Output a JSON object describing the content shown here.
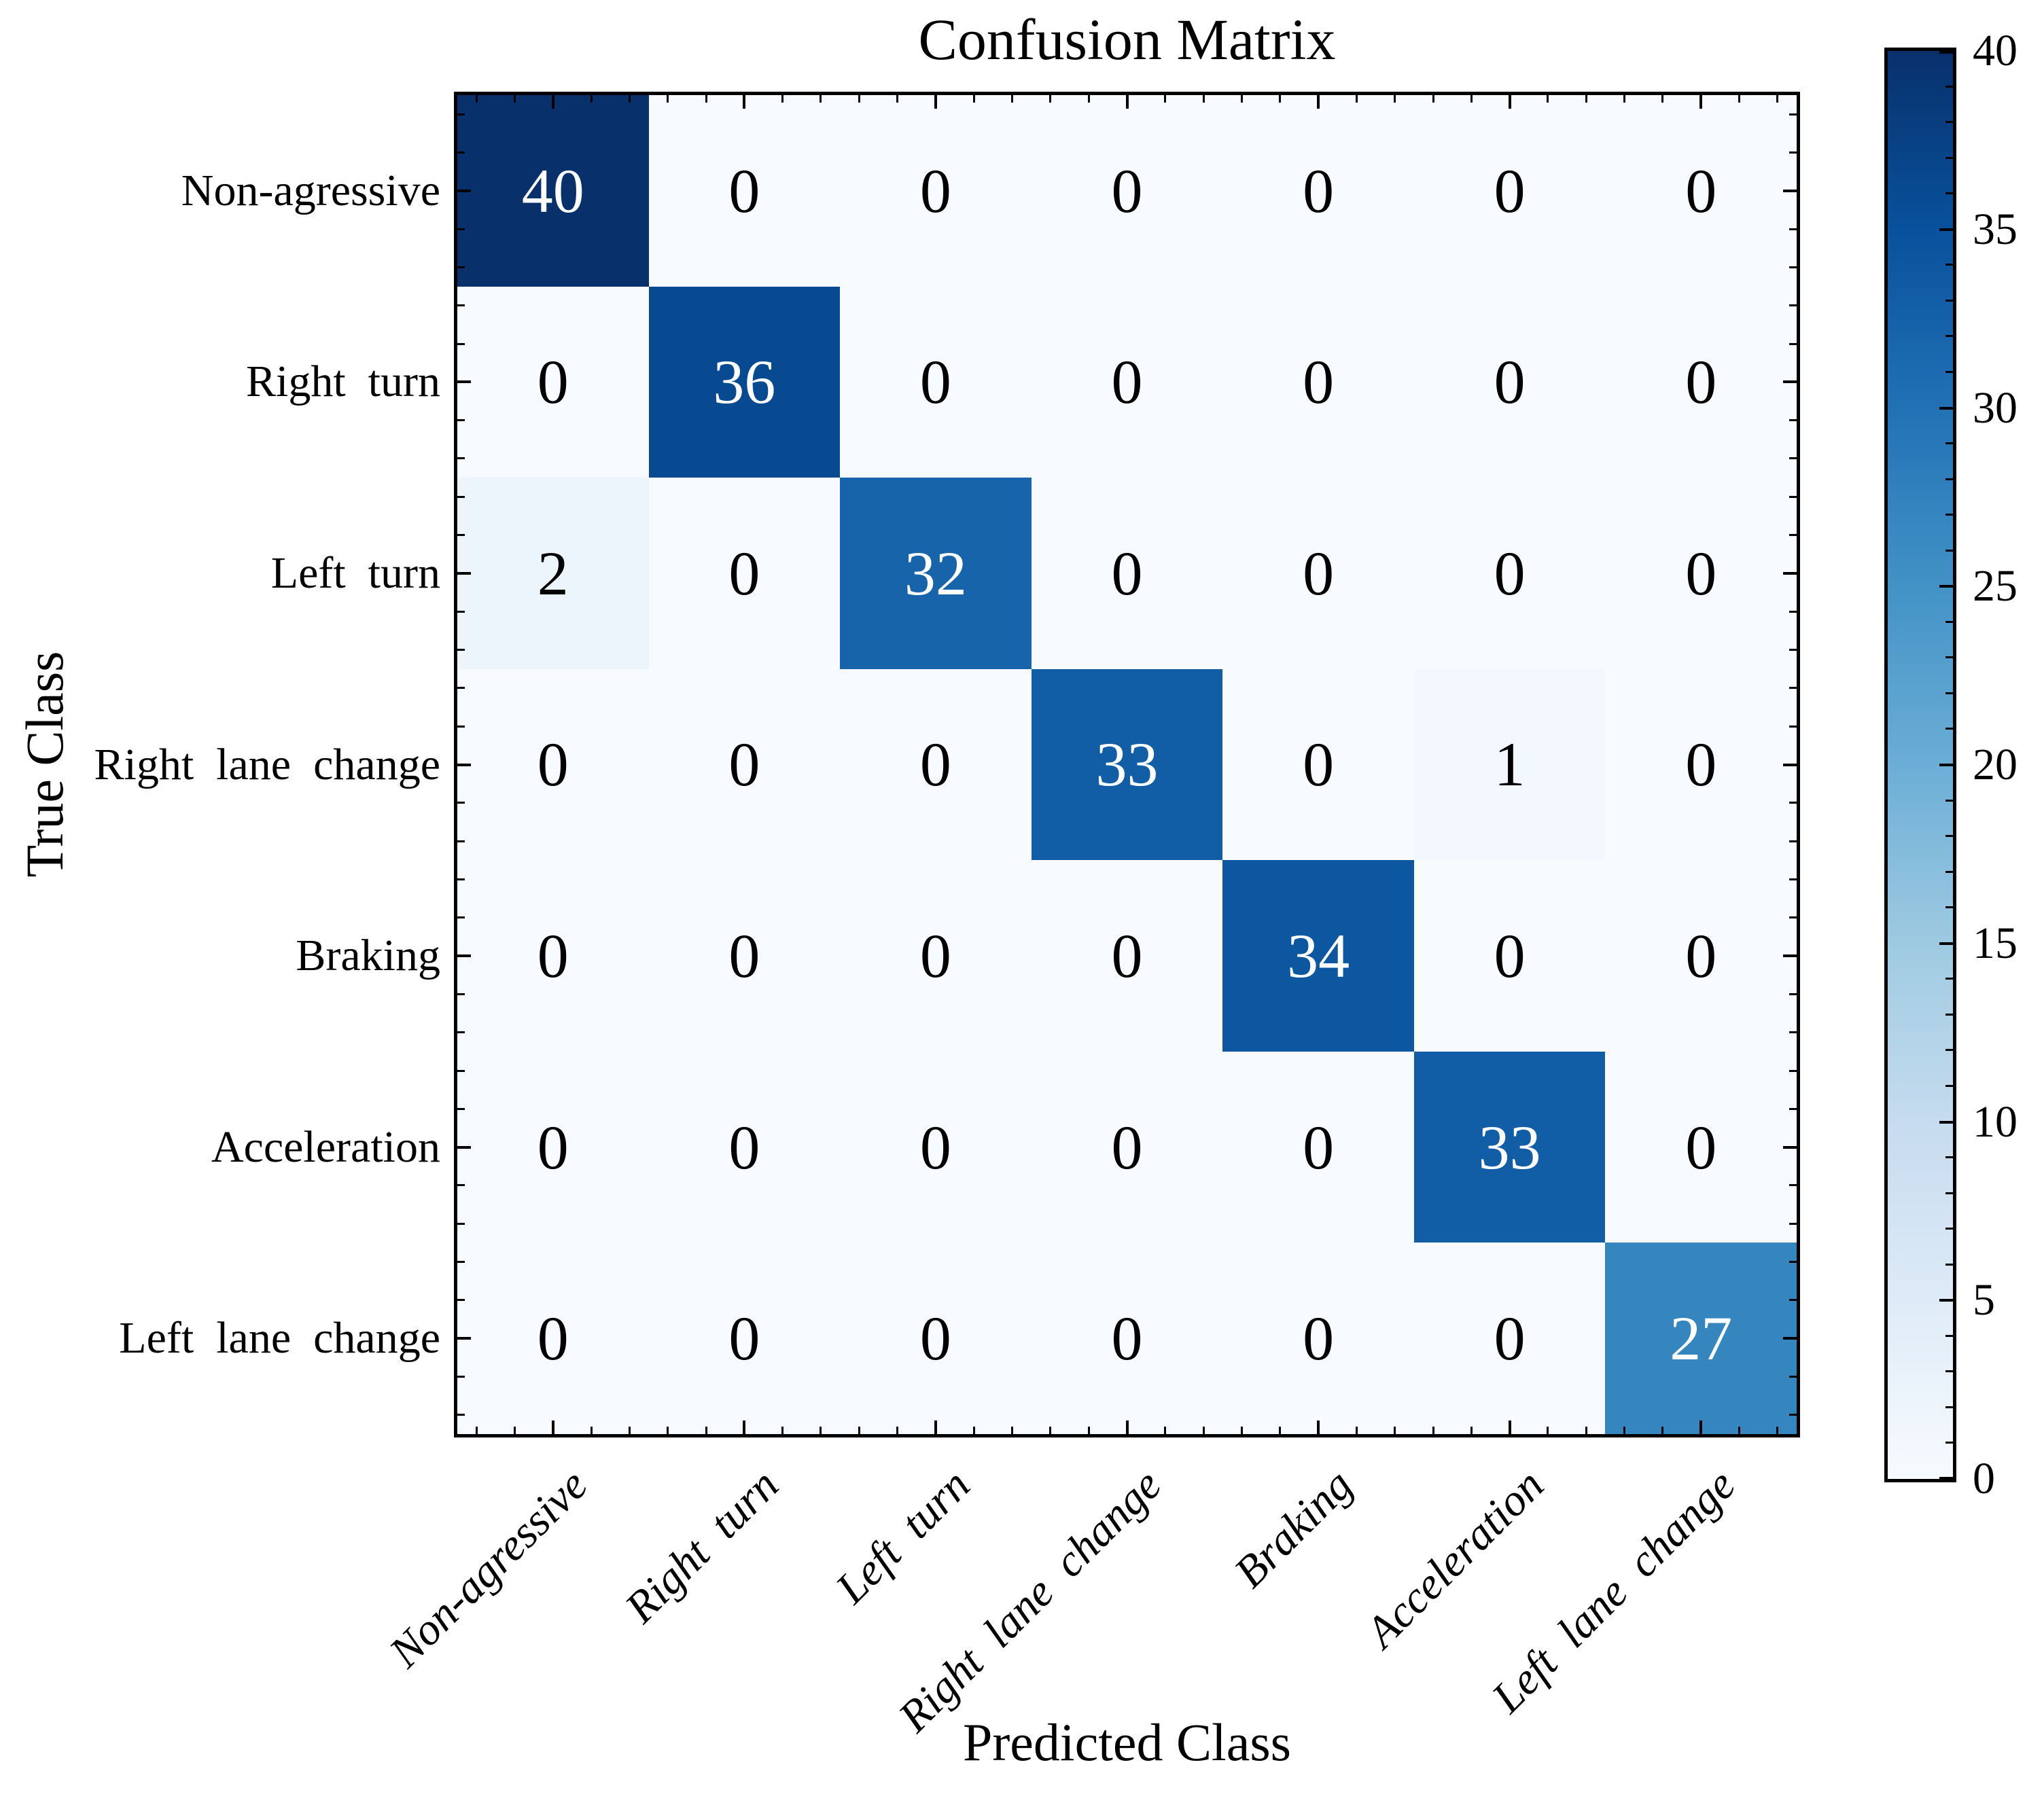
{
  "chart_data": {
    "type": "heatmap",
    "title": "Confusion Matrix",
    "xlabel": "Predicted Class",
    "ylabel": "True Class",
    "categories": [
      "Non-agressive",
      "Right turn",
      "Left turn",
      "Right lane change",
      "Braking",
      "Acceleration",
      "Left lane change"
    ],
    "matrix": [
      [
        40,
        0,
        0,
        0,
        0,
        0,
        0
      ],
      [
        0,
        36,
        0,
        0,
        0,
        0,
        0
      ],
      [
        2,
        0,
        32,
        0,
        0,
        0,
        0
      ],
      [
        0,
        0,
        0,
        33,
        0,
        1,
        0
      ],
      [
        0,
        0,
        0,
        0,
        34,
        0,
        0
      ],
      [
        0,
        0,
        0,
        0,
        0,
        33,
        0
      ],
      [
        0,
        0,
        0,
        0,
        0,
        0,
        27
      ]
    ],
    "vmin": 0,
    "vmax": 40,
    "colorbar": {
      "tick_values": [
        0,
        5,
        10,
        15,
        20,
        25,
        30,
        35,
        40
      ],
      "tick_labels": [
        "0",
        "5",
        "10",
        "15",
        "20",
        "25",
        "30",
        "35",
        "40"
      ],
      "minor_step": 1,
      "position": "right"
    },
    "colormap": {
      "name": "Blues",
      "anchors": [
        [
          0.0,
          "#f7fbff"
        ],
        [
          0.125,
          "#deebf7"
        ],
        [
          0.25,
          "#c6dbef"
        ],
        [
          0.375,
          "#9ecae1"
        ],
        [
          0.5,
          "#6baed6"
        ],
        [
          0.625,
          "#4292c6"
        ],
        [
          0.75,
          "#2171b5"
        ],
        [
          0.875,
          "#08519c"
        ],
        [
          1.0,
          "#08306b"
        ]
      ]
    },
    "colors": {
      "background": "#ffffff",
      "axis": "#000000",
      "value_text_light": "#ffffff",
      "value_text_dark": "#000000"
    },
    "layout": {
      "x_tick_rotation_deg": 45,
      "x_tick_style": "italic",
      "minor_ticks_per_major": 5,
      "ticks_direction": "in",
      "grid": false
    }
  }
}
